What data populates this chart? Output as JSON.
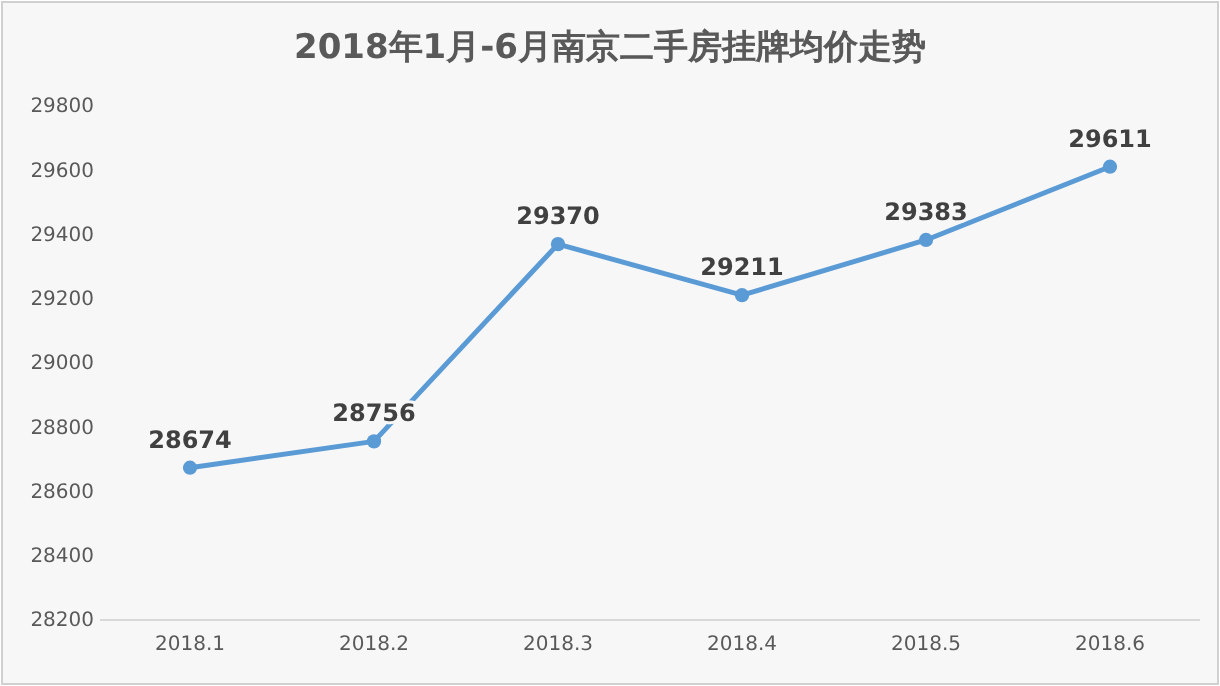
{
  "chart_data": {
    "type": "line",
    "title": "2018年1月-6月南京二手房挂牌均价走势",
    "categories": [
      "2018.1",
      "2018.2",
      "2018.3",
      "2018.4",
      "2018.5",
      "2018.6"
    ],
    "series": [
      {
        "color": "#5b9bd5",
        "values": [
          28674,
          28756,
          29370,
          29211,
          29383,
          29611
        ]
      }
    ],
    "ylim": [
      28200,
      29800
    ],
    "yticks": [
      28200,
      28400,
      28600,
      28800,
      29000,
      29200,
      29400,
      29600,
      29800
    ],
    "marker": "circle",
    "data_labels": true
  }
}
